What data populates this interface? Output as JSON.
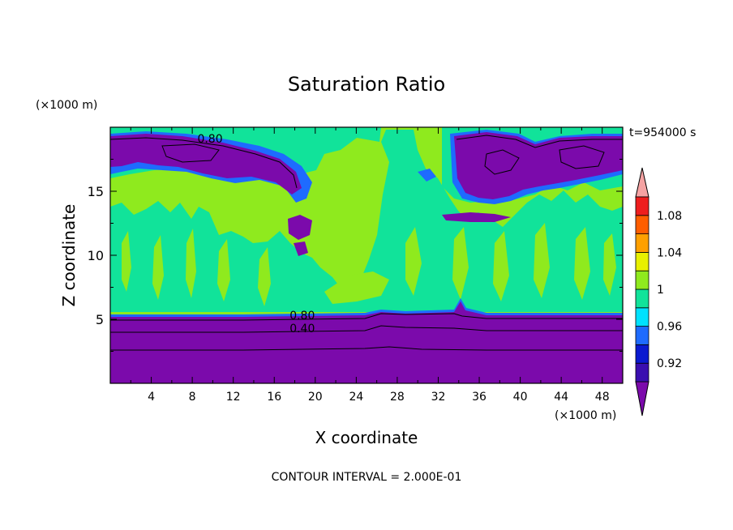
{
  "chart_data": {
    "type": "heatmap",
    "title": "Saturation Ratio",
    "xlabel": "X coordinate",
    "ylabel": "Z coordinate",
    "x_unit": "(×1000 m)",
    "y_unit": "(×1000 m)",
    "time_label": "t=954000 s",
    "footer": "CONTOUR INTERVAL = 2.000E-01",
    "xlim": [
      0,
      50
    ],
    "ylim": [
      0,
      20
    ],
    "x_ticks": [
      4,
      8,
      12,
      16,
      20,
      24,
      28,
      32,
      36,
      40,
      44,
      48
    ],
    "y_ticks": [
      5,
      10,
      15
    ],
    "colorbar": {
      "labels": [
        "1.08",
        "1.04",
        "1",
        "0.96",
        "0.92"
      ],
      "levels": [
        0.9,
        0.92,
        0.94,
        0.96,
        0.98,
        1.0,
        1.02,
        1.04,
        1.06,
        1.08,
        1.1
      ],
      "colors": [
        "#7b0aab",
        "#3a0fb0",
        "#0a1ad0",
        "#1e6bff",
        "#00e2ff",
        "#11e39a",
        "#8fea1e",
        "#e8f000",
        "#ffa000",
        "#ff5e00",
        "#ee1e1e",
        "#f5a3a3"
      ]
    },
    "contour_labels": [
      {
        "text": "0.80",
        "x": 8.5,
        "z": 18.8
      },
      {
        "text": "0.80",
        "x": 17.5,
        "z": 5.0
      },
      {
        "text": "0.40",
        "x": 17.5,
        "z": 4.0
      }
    ],
    "regions": {
      "lower_layer_top_z": 5.3,
      "lower_layer_value": 0.8,
      "mid_layer_value": 1.0,
      "upper_dry_patches_x": [
        [
          0,
          19
        ],
        [
          33,
          50
        ]
      ]
    }
  }
}
